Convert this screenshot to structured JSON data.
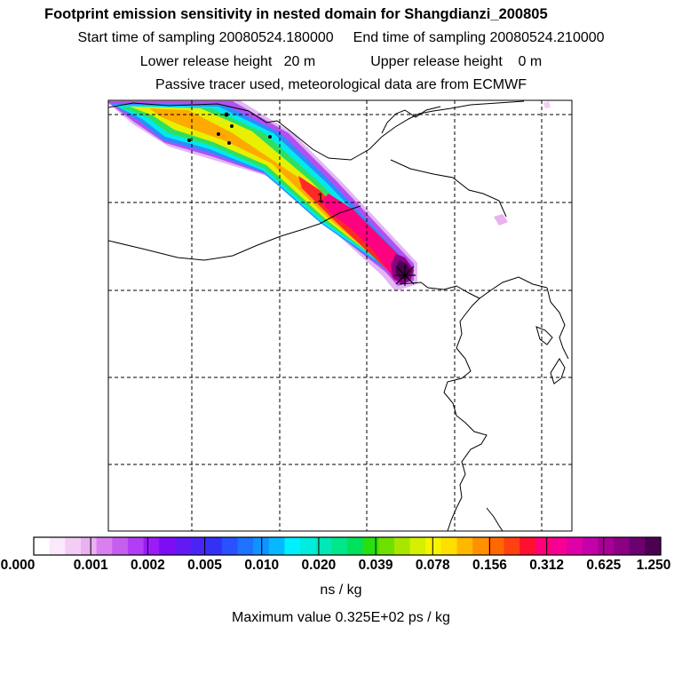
{
  "header": {
    "title": "Footprint emission sensitivity in nested domain for Shangdianzi_200805",
    "start_label": "Start time of sampling 20080524.180000",
    "end_label": "End time of sampling 20080524.210000",
    "lower_label": "Lower release height   20 m",
    "upper_label": "Upper release height    0 m",
    "tracer_label": "Passive tracer used, meteorological data are from ECMWF"
  },
  "map": {
    "marker_label": "1"
  },
  "chart_data": {
    "type": "heatmap",
    "title": "Footprint emission sensitivity in nested domain for Shangdianzi_200805",
    "colorbar": {
      "tick_labels": [
        "0.000",
        "0.001",
        "0.002",
        "0.005",
        "0.010",
        "0.020",
        "0.039",
        "0.078",
        "0.156",
        "0.312",
        "0.625",
        "1.250"
      ],
      "colors": [
        "#ffffff",
        "#fbe8fb",
        "#f3cdf6",
        "#eab0f0",
        "#d980ee",
        "#c65ff0",
        "#b23df4",
        "#9b1cf8",
        "#7f0cf6",
        "#6418f4",
        "#4a24f6",
        "#3331f8",
        "#2a50ff",
        "#1d72ff",
        "#1093ff",
        "#06b8ff",
        "#00f0ff",
        "#00ecdc",
        "#00e8b6",
        "#00e68a",
        "#00e25c",
        "#28e010",
        "#70e000",
        "#a8e600",
        "#d6f000",
        "#f6f400",
        "#ffde00",
        "#ffb800",
        "#ff9000",
        "#ff6800",
        "#ff4010",
        "#ff1030",
        "#ff0078",
        "#f80094",
        "#e000a8",
        "#c400a8",
        "#a80096",
        "#8c0084",
        "#6c0070",
        "#4c0050"
      ],
      "unit_label": "ns / kg"
    },
    "max_value_label": "Maximum value  0.325E+02 ps / kg"
  }
}
